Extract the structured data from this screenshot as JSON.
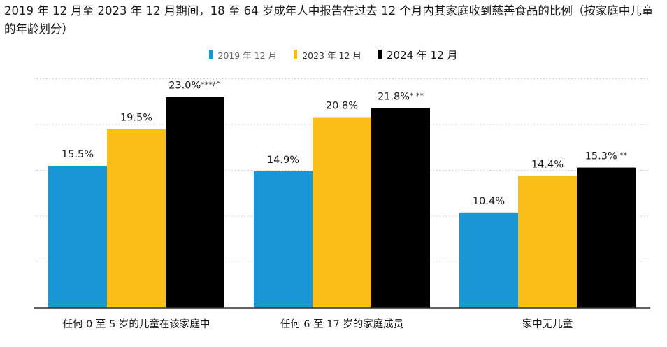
{
  "chart_data": {
    "type": "bar",
    "title": "2019 年 12 月至 2023 年 12 月期间，18 至 64 岁成年人中报告在过去 12 个月内其家庭收到慈善食品的比例（按家庭中儿童的年龄划分）",
    "xlabel": "",
    "ylabel": "",
    "ylim": [
      0,
      30
    ],
    "grid": true,
    "legend_position": "top-center",
    "categories": [
      "任何 0 至 5 岁的儿童在该家庭中",
      "任何 6 至 17 岁的家庭成员",
      "家中无儿童"
    ],
    "series": [
      {
        "name": "2019 年 12 月",
        "color": "#1897d4",
        "values": [
          15.5,
          14.9,
          10.4
        ],
        "labels": [
          "15.5%",
          "14.9%",
          "10.4%"
        ]
      },
      {
        "name": "2023 年 12 月",
        "color": "#fbbd17",
        "values": [
          19.5,
          20.8,
          14.4
        ],
        "labels": [
          "19.5%",
          "20.8%",
          "14.4%"
        ]
      },
      {
        "name": "2024 年 12 月",
        "color": "#000000",
        "values": [
          23.0,
          21.8,
          15.3
        ],
        "labels": [
          "23.0%***/^",
          "21.8%* **",
          "15.3% **"
        ]
      }
    ]
  },
  "colors": {
    "gridline": "#c9c9c9",
    "baseline": "#333333"
  }
}
